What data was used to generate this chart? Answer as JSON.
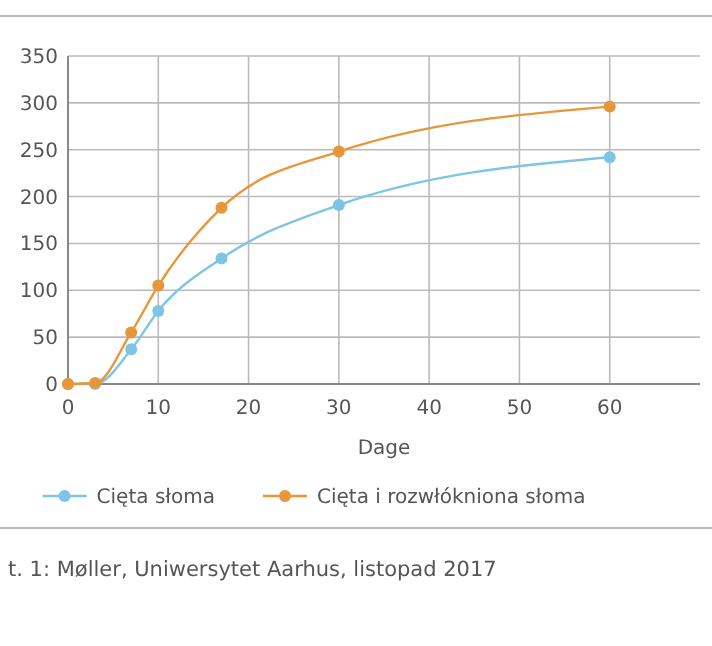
{
  "chart_data": {
    "type": "line",
    "xlabel": "Dage",
    "x": [
      0,
      3,
      7,
      10,
      17,
      30,
      60
    ],
    "series": [
      {
        "name": "Cięta słoma",
        "color": "#7ec4e4",
        "values": [
          0,
          0,
          37,
          78,
          134,
          191,
          242
        ]
      },
      {
        "name": "Cięta i rozwłókniona słoma",
        "color": "#e8963a",
        "values": [
          0,
          1,
          55,
          105,
          188,
          248,
          296
        ]
      }
    ],
    "xlim": [
      0,
      70
    ],
    "xticks": [
      0,
      10,
      20,
      30,
      40,
      50,
      60
    ],
    "ylim": [
      0,
      350
    ],
    "yticks": [
      0,
      50,
      100,
      150,
      200,
      250,
      300,
      350
    ],
    "grid": true,
    "legend": "bottom",
    "marker": "circle",
    "line_style": "solid",
    "annotations": [
      "t. 1: Møller, Uniwersytet Aarhus, listopad 2017"
    ]
  }
}
